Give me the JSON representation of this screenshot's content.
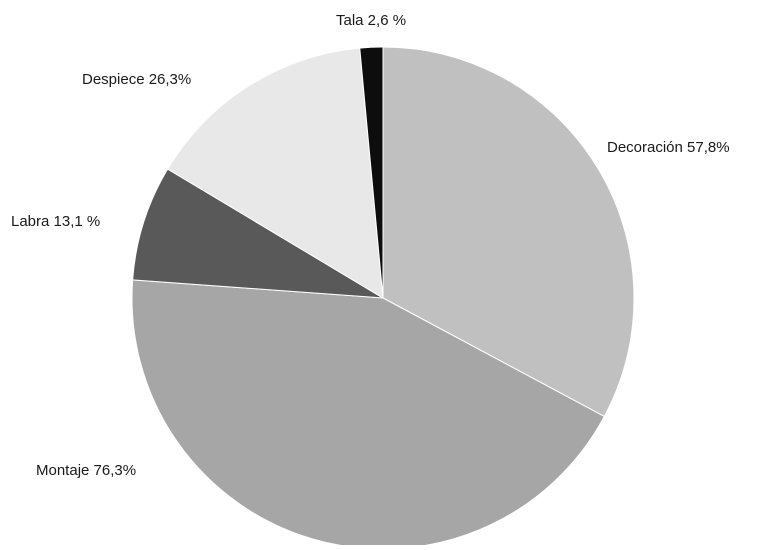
{
  "chart_data": {
    "type": "pie",
    "slices": [
      {
        "label": "Decoración",
        "value_text": "57,8%",
        "value": 57.8,
        "color": "#c0c0c0"
      },
      {
        "label": "Montaje",
        "value_text": "76,3%",
        "value": 76.3,
        "color": "#a6a6a6"
      },
      {
        "label": "Labra",
        "value_text": "13,1 %",
        "value": 13.1,
        "color": "#595959"
      },
      {
        "label": "Despiece",
        "value_text": "26,3%",
        "value": 26.3,
        "color": "#e8e8e8"
      },
      {
        "label": "Tala",
        "value_text": "2,6 %",
        "value": 2.6,
        "color": "#0d0d0d"
      }
    ],
    "start_angle_deg": 0,
    "direction": "clockwise",
    "title": "",
    "legend": "none"
  }
}
